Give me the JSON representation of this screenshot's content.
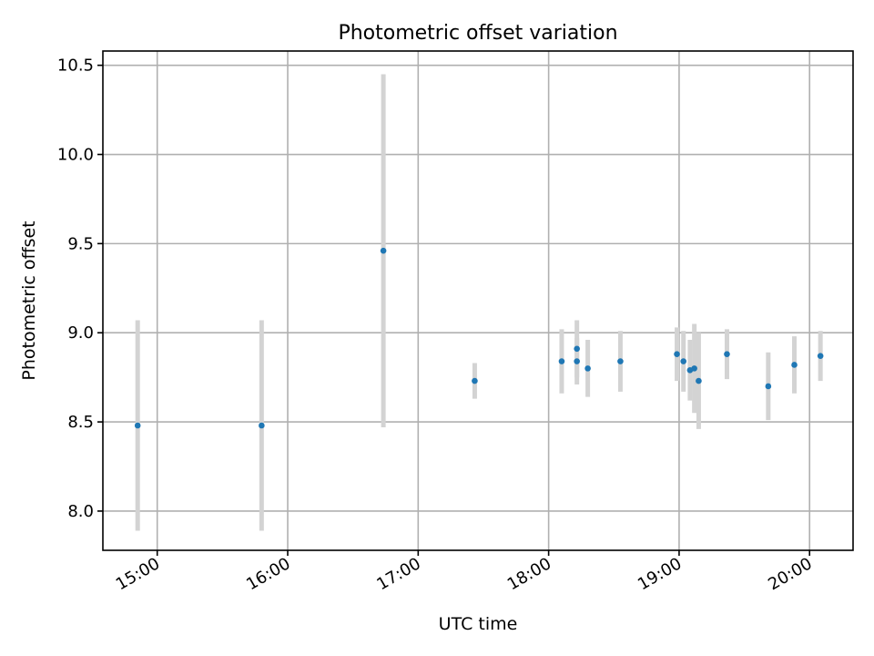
{
  "chart_data": {
    "type": "scatter",
    "title": "Photometric offset variation",
    "xlabel": "UTC time",
    "ylabel": "Photometric offset",
    "x_axis": "time (UTC, hours)",
    "xlim": [
      "14:35",
      "20:20"
    ],
    "ylim": [
      7.78,
      10.58
    ],
    "x_ticks": [
      "15:00",
      "16:00",
      "17:00",
      "18:00",
      "19:00",
      "20:00"
    ],
    "y_ticks": [
      "8.0",
      "8.5",
      "9.0",
      "9.5",
      "10.0",
      "10.5"
    ],
    "grid": true,
    "point_color": "#1f77b4",
    "errorbar_color": "#d3d3d3",
    "points": [
      {
        "x": "14:51",
        "y": 8.48,
        "yerr": 0.59
      },
      {
        "x": "15:48",
        "y": 8.48,
        "yerr": 0.59
      },
      {
        "x": "16:44",
        "y": 9.46,
        "yerr": 0.99
      },
      {
        "x": "17:26",
        "y": 8.73,
        "yerr": 0.1
      },
      {
        "x": "18:06",
        "y": 8.84,
        "yerr": 0.18
      },
      {
        "x": "18:13",
        "y": 8.91,
        "yerr": 0.16
      },
      {
        "x": "18:13",
        "y": 8.84,
        "yerr": 0.13
      },
      {
        "x": "18:18",
        "y": 8.8,
        "yerr": 0.16
      },
      {
        "x": "18:33",
        "y": 8.84,
        "yerr": 0.17
      },
      {
        "x": "18:59",
        "y": 8.88,
        "yerr": 0.15
      },
      {
        "x": "19:02",
        "y": 8.84,
        "yerr": 0.17
      },
      {
        "x": "19:05",
        "y": 8.79,
        "yerr": 0.17
      },
      {
        "x": "19:07",
        "y": 8.8,
        "yerr": 0.25
      },
      {
        "x": "19:09",
        "y": 8.73,
        "yerr": 0.27
      },
      {
        "x": "19:22",
        "y": 8.88,
        "yerr": 0.14
      },
      {
        "x": "19:41",
        "y": 8.7,
        "yerr": 0.19
      },
      {
        "x": "19:53",
        "y": 8.82,
        "yerr": 0.16
      },
      {
        "x": "20:05",
        "y": 8.87,
        "yerr": 0.14
      }
    ]
  }
}
